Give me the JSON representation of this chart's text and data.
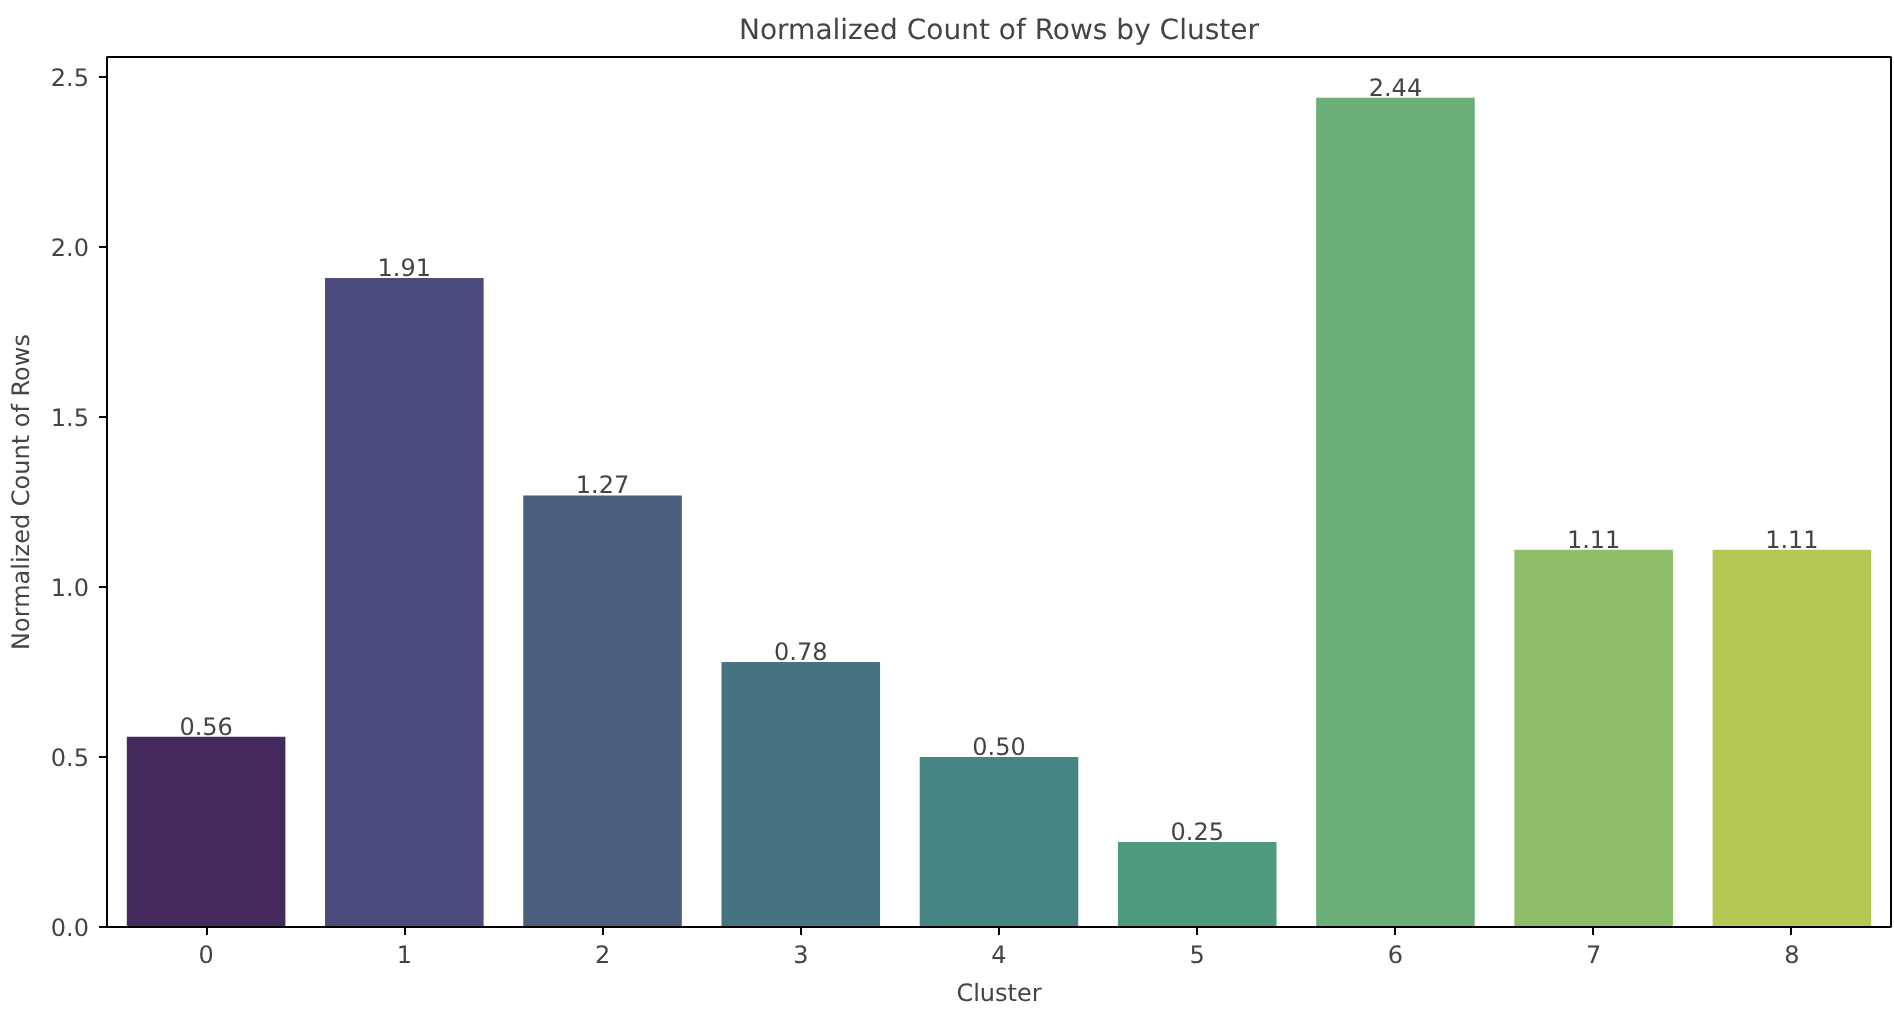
{
  "chart_data": {
    "type": "bar",
    "title": "Normalized Count of Rows by Cluster",
    "xlabel": "Cluster",
    "ylabel": "Normalized Count of Rows",
    "categories": [
      "0",
      "1",
      "2",
      "3",
      "4",
      "5",
      "6",
      "7",
      "8"
    ],
    "values": [
      0.56,
      1.91,
      1.27,
      0.78,
      0.5,
      0.25,
      2.44,
      1.11,
      1.11
    ],
    "value_labels": [
      "0.56",
      "1.91",
      "1.27",
      "0.78",
      "0.50",
      "0.25",
      "2.44",
      "1.11",
      "1.11"
    ],
    "colors": [
      "#452a60",
      "#4a4a7c",
      "#4a5e7f",
      "#457382",
      "#468581",
      "#4d9a7d",
      "#6aaf78",
      "#8dbf68",
      "#b3c752"
    ],
    "ylim": [
      0,
      2.56
    ],
    "yticks": [
      {
        "value": 0,
        "label": "0.0"
      },
      {
        "value": 0.5,
        "label": "0.5"
      },
      {
        "value": 1,
        "label": "1.0"
      },
      {
        "value": 1.5,
        "label": "1.5"
      },
      {
        "value": 2,
        "label": "2.0"
      },
      {
        "value": 2.5,
        "label": "2.5"
      }
    ],
    "grid": false
  }
}
